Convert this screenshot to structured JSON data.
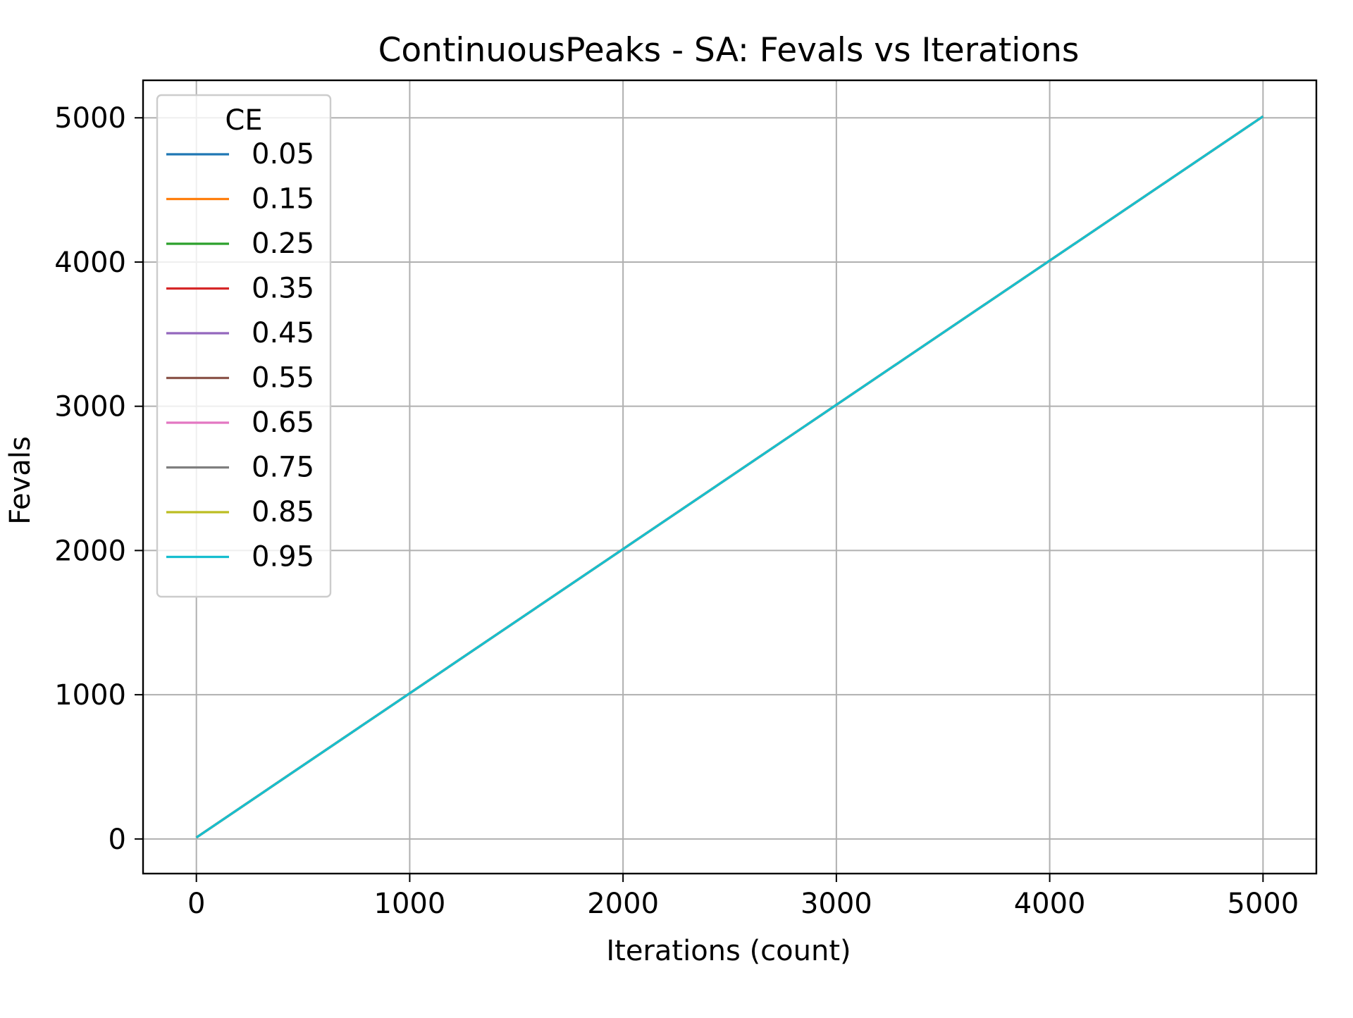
{
  "chart_data": {
    "type": "line",
    "title": "ContinuousPeaks - SA: Fevals vs Iterations",
    "xlabel": "Iterations (count)",
    "ylabel": "Fevals",
    "xlim": [
      -250,
      5250
    ],
    "ylim": [
      -240,
      5260
    ],
    "xticks": [
      0,
      1000,
      2000,
      3000,
      4000,
      5000
    ],
    "yticks": [
      0,
      1000,
      2000,
      3000,
      4000,
      5000
    ],
    "xtick_labels": [
      "0",
      "1000",
      "2000",
      "3000",
      "4000",
      "5000"
    ],
    "ytick_labels": [
      "0",
      "1000",
      "2000",
      "3000",
      "4000",
      "5000"
    ],
    "grid": true,
    "legend": {
      "title": "CE",
      "placement": "upper-left"
    },
    "series": [
      {
        "name": "0.05",
        "color": "#1f77b4",
        "x": [
          0,
          5000
        ],
        "y": [
          10,
          5010
        ]
      },
      {
        "name": "0.15",
        "color": "#ff7f0e",
        "x": [
          0,
          5000
        ],
        "y": [
          10,
          5010
        ]
      },
      {
        "name": "0.25",
        "color": "#2ca02c",
        "x": [
          0,
          5000
        ],
        "y": [
          10,
          5010
        ]
      },
      {
        "name": "0.35",
        "color": "#d62728",
        "x": [
          0,
          5000
        ],
        "y": [
          10,
          5010
        ]
      },
      {
        "name": "0.45",
        "color": "#9467bd",
        "x": [
          0,
          5000
        ],
        "y": [
          10,
          5010
        ]
      },
      {
        "name": "0.55",
        "color": "#8c564b",
        "x": [
          0,
          5000
        ],
        "y": [
          10,
          5010
        ]
      },
      {
        "name": "0.65",
        "color": "#e377c2",
        "x": [
          0,
          5000
        ],
        "y": [
          10,
          5010
        ]
      },
      {
        "name": "0.75",
        "color": "#7f7f7f",
        "x": [
          0,
          5000
        ],
        "y": [
          10,
          5010
        ]
      },
      {
        "name": "0.85",
        "color": "#bcbd22",
        "x": [
          0,
          5000
        ],
        "y": [
          10,
          5010
        ]
      },
      {
        "name": "0.95",
        "color": "#17becf",
        "x": [
          0,
          5000
        ],
        "y": [
          10,
          5010
        ]
      }
    ]
  }
}
